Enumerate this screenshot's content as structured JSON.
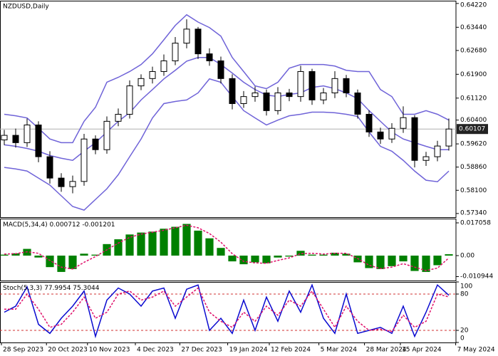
{
  "chart_data": [
    {
      "type": "candlestick",
      "title": "NZDUSD,Daily",
      "open": [
        0.5975,
        0.599,
        0.5966,
        0.6024,
        0.592,
        0.585,
        0.5822,
        0.5839,
        0.5978,
        0.5943,
        0.6036,
        0.6059,
        0.6152,
        0.6176,
        0.6199,
        0.6234,
        0.6292,
        0.6338,
        0.6257,
        0.6234,
        0.6176,
        0.6094,
        0.6117,
        0.6129,
        0.6071,
        0.6129,
        0.6117,
        0.6199,
        0.6106,
        0.6129,
        0.6176,
        0.6129,
        0.6059,
        0.6001,
        0.5978,
        0.6013,
        0.6048,
        0.5908,
        0.592,
        0.5955
      ],
      "high": [
        0.6008,
        0.6012,
        0.6045,
        0.6036,
        0.5938,
        0.5866,
        0.5858,
        0.5995,
        0.599,
        0.6052,
        0.6078,
        0.617,
        0.619,
        0.6215,
        0.6255,
        0.6312,
        0.637,
        0.6345,
        0.6275,
        0.6248,
        0.619,
        0.6135,
        0.615,
        0.614,
        0.6148,
        0.6142,
        0.6218,
        0.6208,
        0.6145,
        0.62,
        0.6188,
        0.614,
        0.6072,
        0.6015,
        0.603,
        0.6085,
        0.6056,
        0.5936,
        0.5972,
        0.6045
      ],
      "low": [
        0.5958,
        0.595,
        0.5952,
        0.5902,
        0.5832,
        0.5805,
        0.58,
        0.5825,
        0.5928,
        0.593,
        0.602,
        0.6045,
        0.6138,
        0.616,
        0.6185,
        0.622,
        0.6275,
        0.624,
        0.6218,
        0.616,
        0.6075,
        0.608,
        0.61,
        0.6055,
        0.6058,
        0.6102,
        0.61,
        0.609,
        0.6092,
        0.6112,
        0.6115,
        0.6045,
        0.5985,
        0.5962,
        0.5965,
        0.5998,
        0.5885,
        0.589,
        0.5905,
        0.594
      ],
      "close": [
        0.599,
        0.5966,
        0.6024,
        0.592,
        0.585,
        0.5822,
        0.5839,
        0.5978,
        0.5943,
        0.6036,
        0.6059,
        0.6152,
        0.6176,
        0.6199,
        0.6234,
        0.6292,
        0.6338,
        0.6257,
        0.6234,
        0.6176,
        0.6094,
        0.6117,
        0.6129,
        0.6071,
        0.6129,
        0.6117,
        0.6199,
        0.6106,
        0.6129,
        0.6176,
        0.6129,
        0.6059,
        0.6001,
        0.5978,
        0.6013,
        0.6048,
        0.5908,
        0.592,
        0.5955,
        0.60107
      ],
      "series": [
        {
          "color": "#6f63d8",
          "values": [
            0.6059,
            0.6054,
            0.6047,
            0.6013,
            0.5978,
            0.5966,
            0.5966,
            0.6036,
            0.6082,
            0.6164,
            0.618,
            0.6199,
            0.6222,
            0.6257,
            0.6303,
            0.635,
            0.6385,
            0.6361,
            0.6343,
            0.6315,
            0.6245,
            0.6199,
            0.6152,
            0.6143,
            0.6164,
            0.621,
            0.6222,
            0.6222,
            0.6222,
            0.6217,
            0.6203,
            0.6199,
            0.6199,
            0.614,
            0.6117,
            0.6059,
            0.6059,
            0.6071,
            0.6059,
            0.604
          ]
        },
        {
          "color": "#6f63d8",
          "values": [
            0.5959,
            0.5954,
            0.5947,
            0.5938,
            0.5924,
            0.5915,
            0.5908,
            0.5938,
            0.5966,
            0.6001,
            0.6036,
            0.6064,
            0.6106,
            0.614,
            0.6175,
            0.6203,
            0.6233,
            0.6245,
            0.6245,
            0.6222,
            0.6194,
            0.6164,
            0.614,
            0.6122,
            0.6117,
            0.6124,
            0.6129,
            0.6147,
            0.6152,
            0.6143,
            0.6129,
            0.611,
            0.6071,
            0.6036,
            0.6001,
            0.5978,
            0.5966,
            0.5954,
            0.5943,
            0.5943
          ]
        },
        {
          "color": "#6f63d8",
          "values": [
            0.5885,
            0.588,
            0.5873,
            0.585,
            0.5827,
            0.5792,
            0.5757,
            0.5745,
            0.578,
            0.5815,
            0.5861,
            0.592,
            0.5978,
            0.6047,
            0.6094,
            0.6101,
            0.6106,
            0.6129,
            0.6175,
            0.6164,
            0.6117,
            0.6071,
            0.6047,
            0.6024,
            0.604,
            0.6054,
            0.6059,
            0.6066,
            0.6066,
            0.6064,
            0.6059,
            0.6052,
            0.6001,
            0.5954,
            0.5938,
            0.5908,
            0.5873,
            0.5843,
            0.5838,
            0.5873
          ]
        }
      ],
      "xlim": [
        -0.375,
        39.625
      ],
      "xticks": [
        {
          "value": -0.25,
          "label": "28 Sep 2023"
        },
        {
          "value": 3.7,
          "label": "20 Oct 2023"
        },
        {
          "value": 7.3,
          "label": "10 Nov 2023"
        },
        {
          "value": 11.5,
          "label": "4 Dec 2023"
        },
        {
          "value": 15.4,
          "label": "27 Dec 2023"
        },
        {
          "value": 19.6,
          "label": "19 Jan 2024"
        },
        {
          "value": 23.25,
          "label": "12 Feb 2024"
        },
        {
          "value": 27.6,
          "label": "5 Mar 2024"
        },
        {
          "value": 31.6,
          "label": "28 Mar 2024"
        },
        {
          "value": 34.75,
          "label": "15 Apr 2024"
        },
        {
          "value": 39.6,
          "label": "7 May 2024"
        }
      ],
      "ylim": [
        0.5722,
        0.6431
      ],
      "yticks": [
        {
          "value": 0.6422,
          "label": "0.64220"
        },
        {
          "value": 0.6344,
          "label": "0.63440"
        },
        {
          "value": 0.6268,
          "label": "0.62680"
        },
        {
          "value": 0.619,
          "label": "0.61900"
        },
        {
          "value": 0.6112,
          "label": "0.61120"
        },
        {
          "value": 0.604,
          "label": "0.60400"
        },
        {
          "value": 0.5962,
          "label": "0.59620"
        },
        {
          "value": 0.5886,
          "label": "0.58860"
        },
        {
          "value": 0.581,
          "label": "0.58100"
        },
        {
          "value": 0.5734,
          "label": "0.57340"
        }
      ]
    },
    {
      "type": "macd",
      "title": "MACD(5,34,4)",
      "series": [
        {
          "kind": "bar",
          "color": "#008000",
          "values": [
            0.0005,
            0.0012,
            0.0035,
            -0.001,
            -0.006,
            -0.0085,
            -0.007,
            0.001,
            0.0005,
            0.006,
            0.0085,
            0.011,
            0.012,
            0.0125,
            0.014,
            0.015,
            0.0165,
            0.013,
            0.009,
            0.004,
            -0.003,
            -0.0045,
            -0.0035,
            -0.004,
            -0.001,
            -0.0005,
            0.0025,
            0.0005,
            0.0005,
            0.0015,
            0.001,
            -0.0035,
            -0.0065,
            -0.007,
            -0.0055,
            -0.003,
            -0.008,
            -0.0085,
            -0.005,
            0.000712
          ]
        },
        {
          "kind": "line",
          "dashed": true,
          "color": "#e0106a",
          "values": [
            0.0008,
            0.001,
            0.002,
            0.0012,
            -0.0025,
            -0.006,
            -0.007,
            -0.0035,
            -0.0005,
            0.003,
            0.0065,
            0.0095,
            0.0112,
            0.0122,
            0.0132,
            0.0145,
            0.0158,
            0.0145,
            0.0115,
            0.007,
            0.001,
            -0.003,
            -0.0038,
            -0.004,
            -0.0025,
            -0.0012,
            0.001,
            0.0012,
            0.0008,
            0.0012,
            0.0012,
            -0.0015,
            -0.005,
            -0.0068,
            -0.006,
            -0.0042,
            -0.006,
            -0.0078,
            -0.0065,
            -0.001201
          ]
        }
      ],
      "ylim": [
        -0.01298,
        0.01928
      ],
      "yticks": [
        0.017058,
        {
          "value": 0,
          "label": "0.00"
        },
        -0.010944
      ]
    },
    {
      "type": "stochastic",
      "title": "Stoch(5,3,3)",
      "series": [
        {
          "kind": "line",
          "dashed": false,
          "color": "#0a0ad0",
          "values": [
            50,
            60,
            92,
            30,
            15,
            40,
            60,
            85,
            10,
            70,
            90,
            80,
            60,
            85,
            90,
            40,
            88,
            95,
            20,
            40,
            15,
            70,
            20,
            75,
            35,
            85,
            50,
            95,
            40,
            15,
            80,
            15,
            20,
            25,
            15,
            60,
            10,
            50,
            95,
            77.9954
          ]
        },
        {
          "kind": "line",
          "dashed": true,
          "color": "#e0106a",
          "values": [
            55,
            55,
            80,
            55,
            25,
            30,
            50,
            75,
            40,
            50,
            80,
            85,
            70,
            75,
            85,
            60,
            75,
            90,
            50,
            35,
            25,
            50,
            35,
            60,
            45,
            70,
            60,
            85,
            55,
            25,
            60,
            35,
            20,
            22,
            18,
            45,
            25,
            35,
            80,
            75.3044
          ]
        }
      ],
      "levels": [
        80,
        20
      ],
      "level_color": "#d03030",
      "ylim": [
        0,
        100
      ],
      "yticks": [
        100,
        80,
        20,
        0
      ]
    }
  ]
}
